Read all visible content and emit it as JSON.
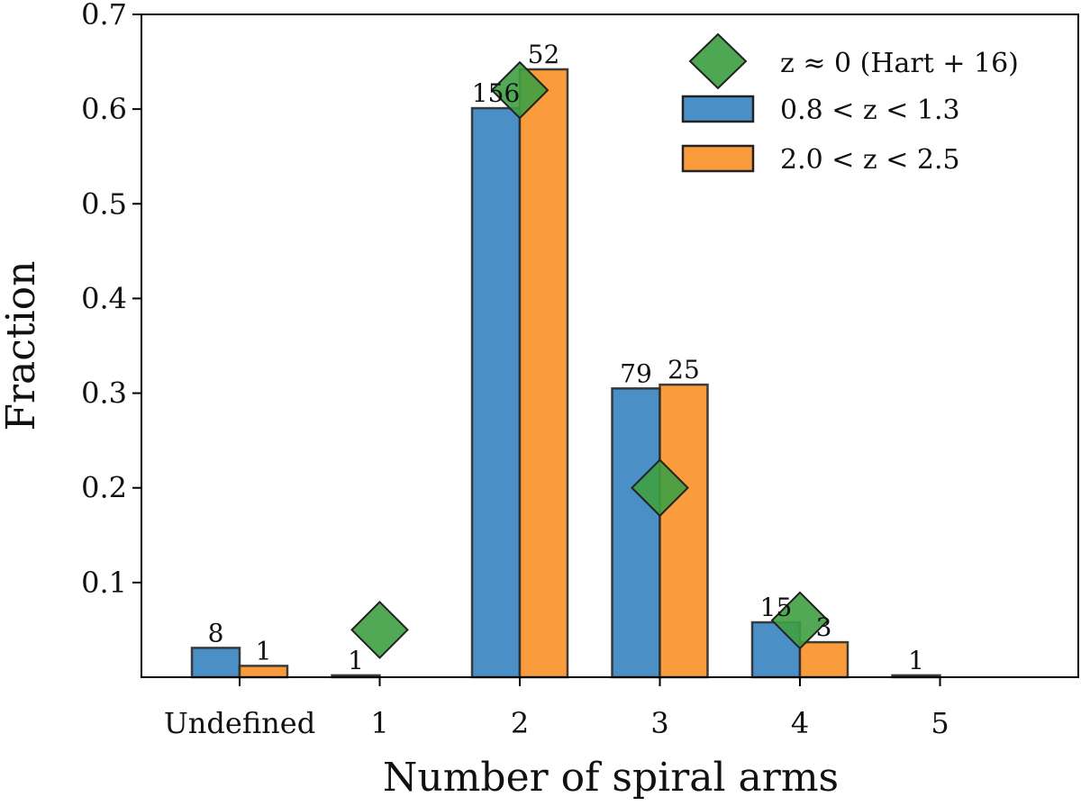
{
  "chart_data": {
    "type": "bar",
    "xlabel": "Number of spiral arms",
    "ylabel": "Fraction",
    "ylim": [
      0,
      0.7
    ],
    "yticks": [
      "0.1",
      "0.2",
      "0.3",
      "0.4",
      "0.5",
      "0.6",
      "0.7"
    ],
    "categories": [
      "Undefined",
      "1",
      "2",
      "3",
      "4",
      "5"
    ],
    "series": [
      {
        "name": "0.8 < z < 1.3",
        "color": "#4a8fc6",
        "values": [
          0.031,
          0.002,
          0.601,
          0.305,
          0.058,
          0.002
        ],
        "labels": [
          "8",
          "1",
          "156",
          "79",
          "15",
          "1"
        ]
      },
      {
        "name": "2.0 < z < 2.5",
        "color": "#fb9c3c",
        "values": [
          0.012,
          0,
          0.642,
          0.309,
          0.037,
          0
        ],
        "labels": [
          "1",
          "",
          "52",
          "25",
          "3",
          ""
        ]
      }
    ],
    "reference": {
      "name": "z ≈ 0 (Hart + 16)",
      "color": "#3fa043",
      "x": [
        "1",
        "2",
        "3",
        "4"
      ],
      "values": [
        0.05,
        0.62,
        0.2,
        0.06
      ]
    },
    "legend_position": "top-right",
    "grid": false
  }
}
